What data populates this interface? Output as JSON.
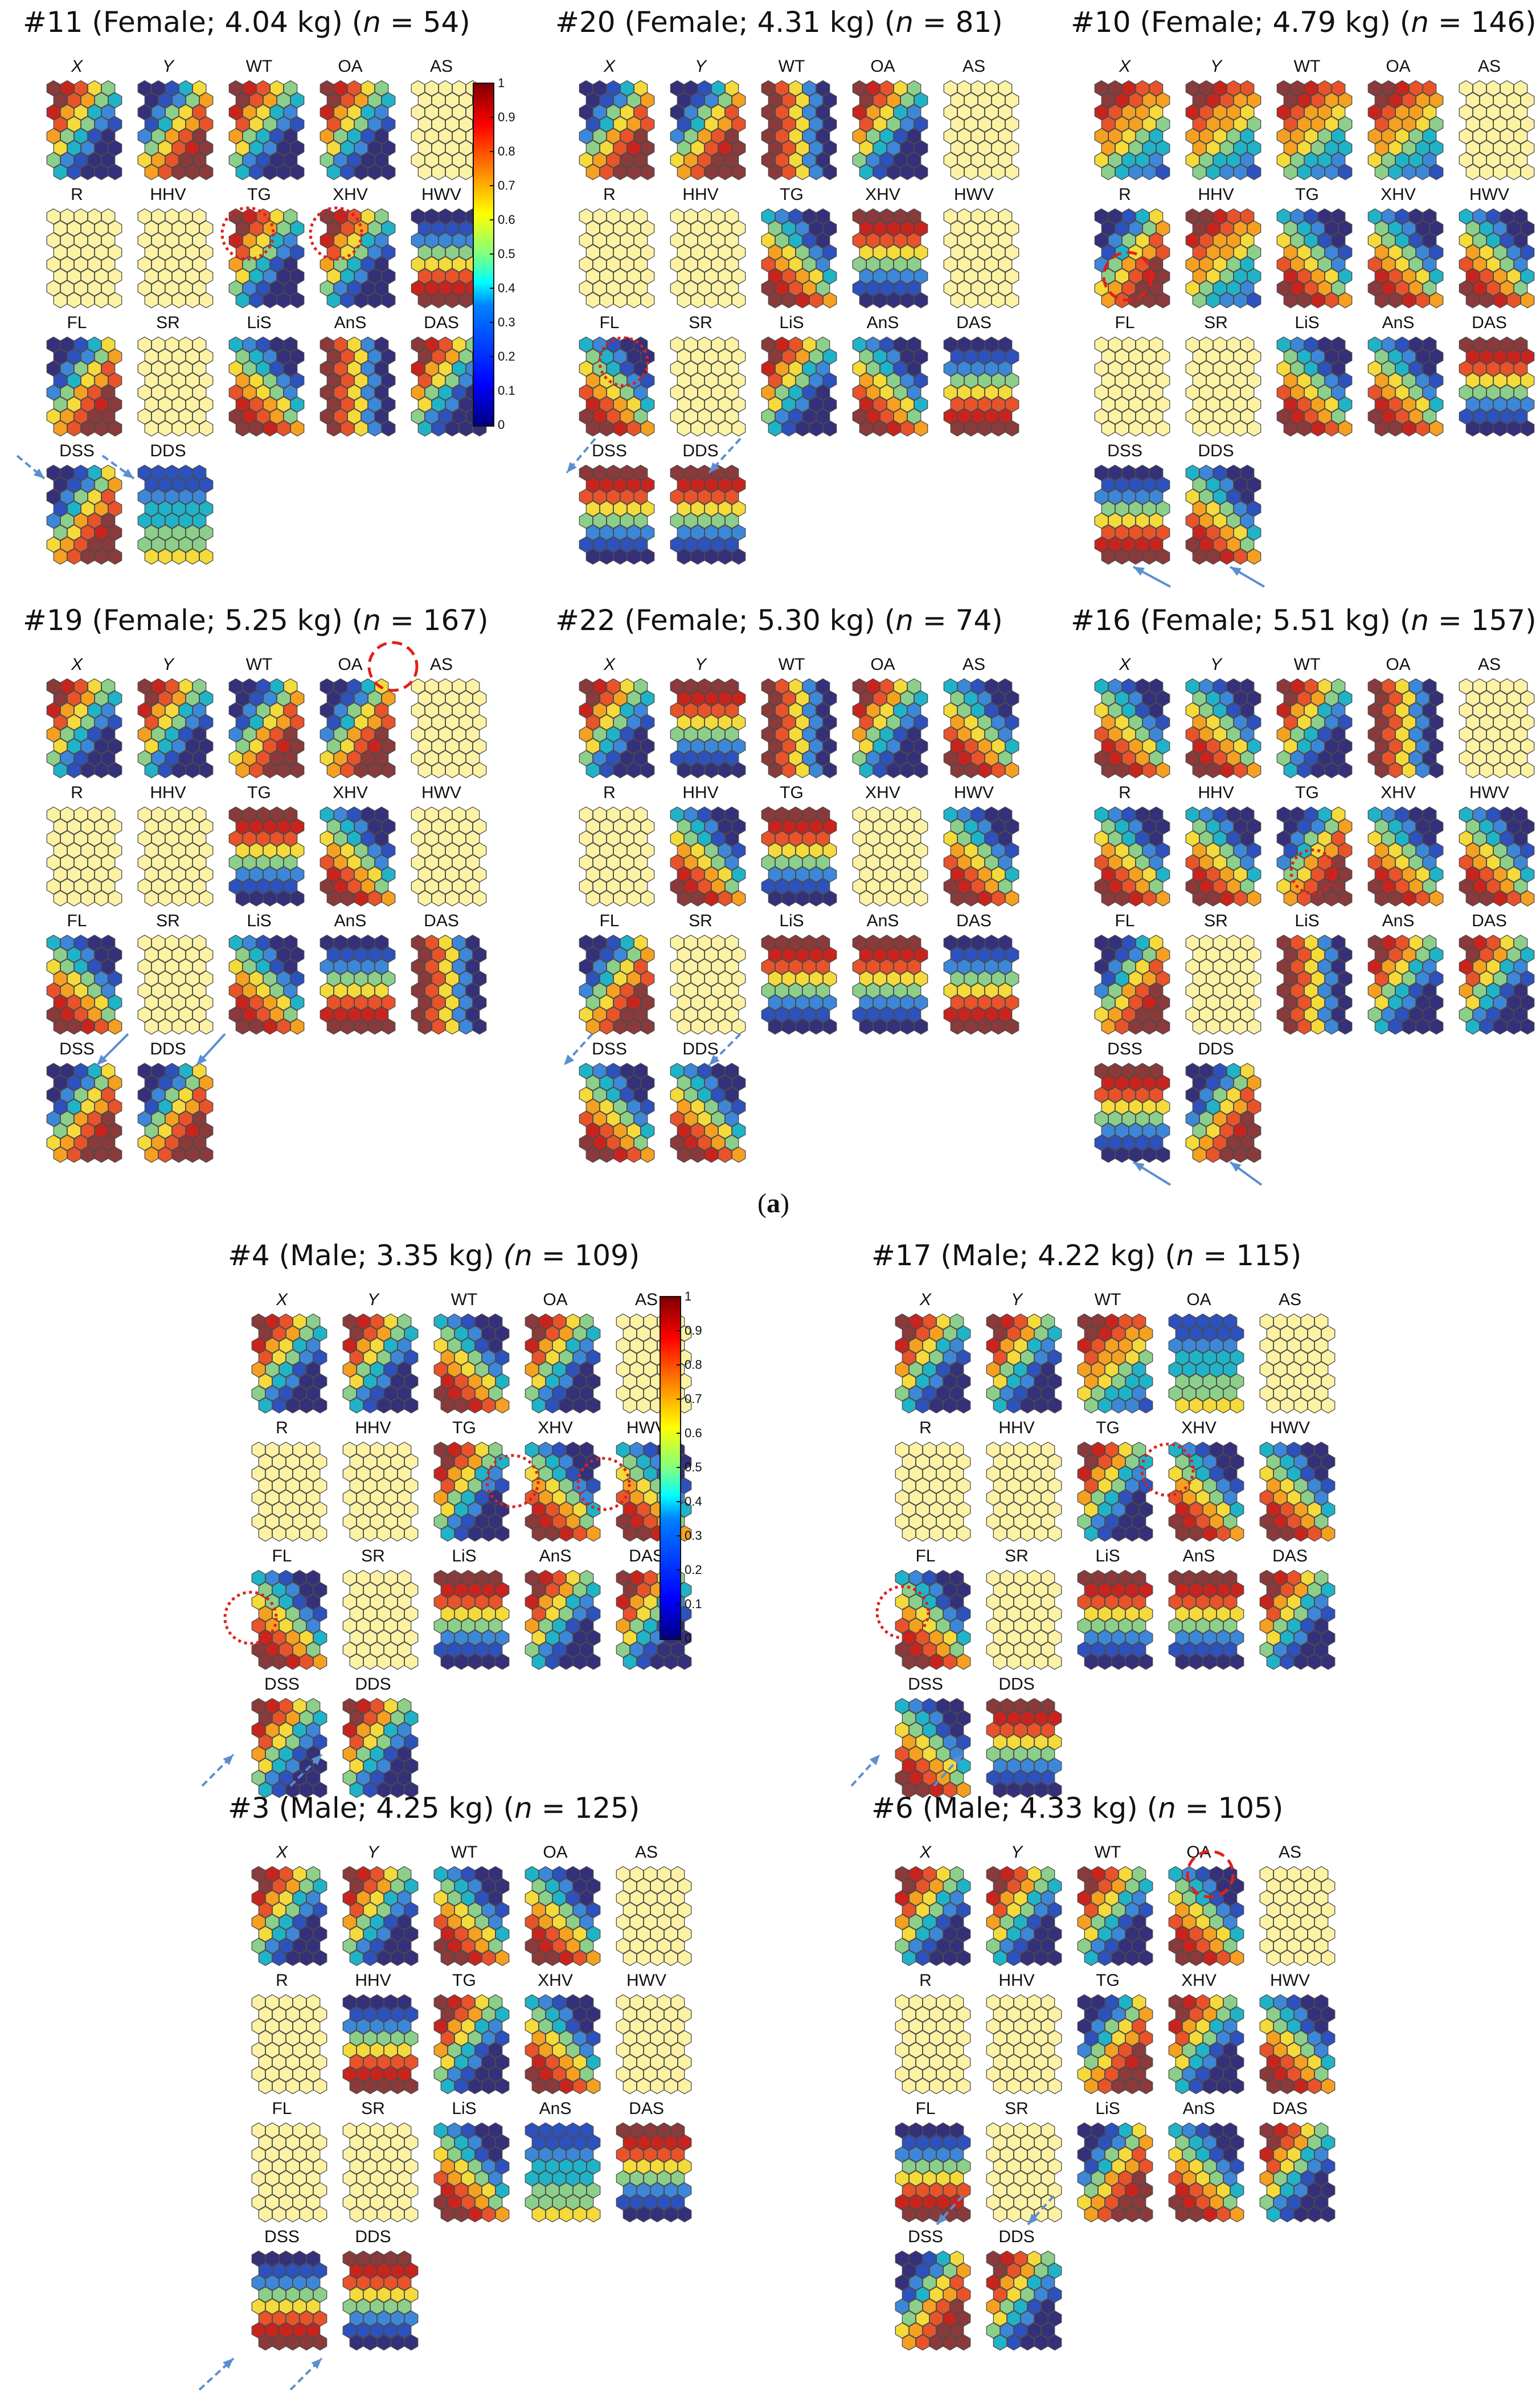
{
  "figure_label": {
    "open": "(",
    "letter": "a",
    "close": ")"
  },
  "colorscale": {
    "ticks": [
      "0",
      "0.1",
      "0.2",
      "0.3",
      "0.4",
      "0.5",
      "0.6",
      "0.7",
      "0.8",
      "0.9",
      "1"
    ],
    "low_color": "#00008b",
    "high_color": "#800000"
  },
  "variables": [
    "X",
    "Y",
    "WT",
    "OA",
    "AS",
    "R",
    "HHV",
    "TG",
    "XHV",
    "HWV",
    "FL",
    "SR",
    "LiS",
    "AnS",
    "DAS",
    "DSS",
    "DDS"
  ],
  "italic_variables": [
    "X",
    "Y"
  ],
  "palette": {
    "uniform": "#fdf2a4",
    "ramp": [
      "#35307a",
      "#2d52bd",
      "#3d87d8",
      "#20b3c8",
      "#8ccf8a",
      "#f4da3a",
      "#f5a020",
      "#e8532a",
      "#c8241e",
      "#8a3a3a"
    ]
  },
  "panels": [
    {
      "id": "p11",
      "title": {
        "before": "#11 (Female; 4.04 kg) (",
        "n_label": "n",
        "after": " = 54)"
      },
      "maps": {
        "X": "d1",
        "Y": "d2",
        "WT": "d1",
        "OA": "d1",
        "AS": "u",
        "R": "u",
        "HHV": "u",
        "TG": "d1",
        "XHV": "d1",
        "HWV": "h2",
        "FL": "d2",
        "SR": "u",
        "LiS": "d3",
        "AnS": "v1",
        "DAS": "d1",
        "DSS": "d2",
        "DDS": "h3"
      }
    },
    {
      "id": "p20",
      "title": {
        "before": "#20 (Female; 4.31 kg) (",
        "n_label": "n",
        "after": " = 81)"
      },
      "maps": {
        "X": "d2",
        "Y": "d2",
        "WT": "v1",
        "OA": "d1",
        "AS": "u",
        "R": "u",
        "HHV": "u",
        "TG": "d3",
        "XHV": "h1",
        "HWV": "u",
        "FL": "d3",
        "SR": "u",
        "LiS": "d1",
        "AnS": "d3",
        "DAS": "h2",
        "DSS": "h1",
        "DDS": "h1"
      }
    },
    {
      "id": "p10",
      "title": {
        "before": "#10 (Female; 4.79 kg) (",
        "n_label": "n",
        "after": " = 146)"
      },
      "maps": {
        "X": "d4",
        "Y": "d4",
        "WT": "d4",
        "OA": "d4",
        "AS": "u",
        "R": "d2",
        "HHV": "d4",
        "TG": "d3",
        "XHV": "d3",
        "HWV": "d3",
        "FL": "u",
        "SR": "u",
        "LiS": "d3",
        "AnS": "d3",
        "DAS": "h1",
        "DSS": "h2",
        "DDS": "d3"
      }
    },
    {
      "id": "p19",
      "title": {
        "before": "#19 (Female; 5.25 kg) (",
        "n_label": "n",
        "after": " = 167)"
      },
      "maps": {
        "X": "d1",
        "Y": "d1",
        "WT": "d2",
        "OA": "d2",
        "AS": "u",
        "R": "u",
        "HHV": "u",
        "TG": "h1",
        "XHV": "d3",
        "HWV": "u",
        "FL": "d3",
        "SR": "u",
        "LiS": "d3",
        "AnS": "h2",
        "DAS": "v1",
        "DSS": "d2",
        "DDS": "d2"
      }
    },
    {
      "id": "p22",
      "title": {
        "before": "#22 (Female; 5.30 kg) (",
        "n_label": "n",
        "after": " = 74)"
      },
      "maps": {
        "X": "d1",
        "Y": "h1",
        "WT": "v1",
        "OA": "d1",
        "AS": "d3",
        "R": "u",
        "HHV": "d3",
        "TG": "h1",
        "XHV": "u",
        "HWV": "d3",
        "FL": "d2",
        "SR": "u",
        "LiS": "h1",
        "AnS": "h1",
        "DAS": "h2",
        "DSS": "d3",
        "DDS": "d3"
      }
    },
    {
      "id": "p16",
      "title": {
        "before": "#16 (Female; 5.51 kg) (",
        "n_label": "n",
        "after": " = 157)"
      },
      "maps": {
        "X": "d3",
        "Y": "d3",
        "WT": "d1",
        "OA": "v1",
        "AS": "u",
        "R": "d3",
        "HHV": "d3",
        "TG": "d2",
        "XHV": "d3",
        "HWV": "d3",
        "FL": "d2",
        "SR": "u",
        "LiS": "v1",
        "AnS": "d1",
        "DAS": "d1",
        "DSS": "h1",
        "DDS": "d2"
      }
    },
    {
      "id": "p4",
      "title": {
        "before": "#4 (Male; 3.35 kg) ",
        "n_label": "(n",
        "after": " = 109)"
      },
      "maps": {
        "X": "d1",
        "Y": "d1",
        "WT": "d3",
        "OA": "d1",
        "AS": "u",
        "R": "u",
        "HHV": "u",
        "TG": "d1",
        "XHV": "d3",
        "HWV": "d3",
        "FL": "d3",
        "SR": "u",
        "LiS": "h1",
        "AnS": "d1",
        "DAS": "d1",
        "DSS": "d1",
        "DDS": "d1"
      }
    },
    {
      "id": "p17",
      "title": {
        "before": "#17 (Male; 4.22 kg) (",
        "n_label": "n",
        "after": " = 115)"
      },
      "maps": {
        "X": "d1",
        "Y": "d1",
        "WT": "d4",
        "OA": "h3",
        "AS": "u",
        "R": "u",
        "HHV": "u",
        "TG": "d1",
        "XHV": "d3",
        "HWV": "d3",
        "FL": "d3",
        "SR": "u",
        "LiS": "h1",
        "AnS": "h1",
        "DAS": "d1",
        "DSS": "d3",
        "DDS": "h1"
      }
    },
    {
      "id": "p3",
      "title": {
        "before": "#3 (Male; 4.25 kg) (",
        "n_label": "n",
        "after": " = 125)"
      },
      "maps": {
        "X": "d1",
        "Y": "d1",
        "WT": "d3",
        "OA": "d3",
        "AS": "u",
        "R": "u",
        "HHV": "h2",
        "TG": "d1",
        "XHV": "d3",
        "HWV": "u",
        "FL": "u",
        "SR": "u",
        "LiS": "d3",
        "AnS": "h3",
        "DAS": "h1",
        "DSS": "h2",
        "DDS": "h1"
      }
    },
    {
      "id": "p6",
      "title": {
        "before": "#6 (Male; 4.33 kg) (",
        "n_label": "n",
        "after": " = 105)"
      },
      "maps": {
        "X": "d1",
        "Y": "d1",
        "WT": "d1",
        "OA": "d3",
        "AS": "u",
        "R": "u",
        "HHV": "u",
        "TG": "d2",
        "XHV": "d1",
        "HWV": "d3",
        "FL": "h2",
        "SR": "u",
        "LiS": "d2",
        "AnS": "d3",
        "DAS": "d1",
        "DSS": "d2",
        "DDS": "d1"
      }
    }
  ]
}
